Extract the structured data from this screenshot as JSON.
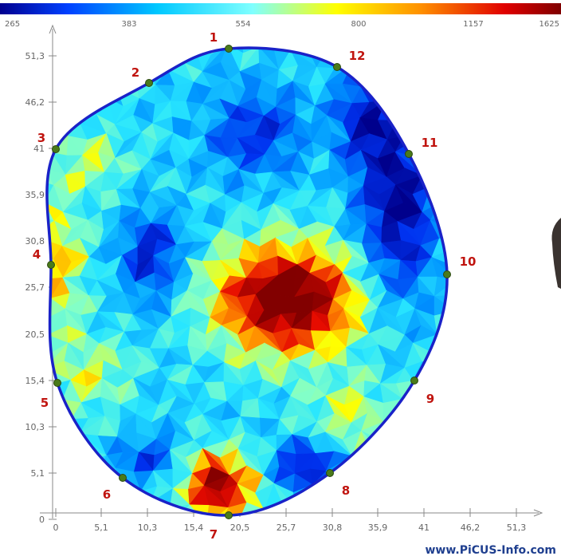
{
  "color_scale": {
    "labels": [
      "265",
      "383",
      "554",
      "800",
      "1157",
      "1625"
    ],
    "gradient": [
      "#00008f",
      "#0050ff",
      "#00c8ff",
      "#7fffff",
      "#ffff00",
      "#ff9000",
      "#e00000",
      "#7f0000"
    ]
  },
  "axes": {
    "y_ticks": [
      "51,3",
      "46,2",
      "41",
      "35,9",
      "30,8",
      "25,7",
      "20,5",
      "15,4",
      "10,3",
      "5,1",
      "0"
    ],
    "x_ticks": [
      "0",
      "5,1",
      "10,3",
      "15,4",
      "20,5",
      "25,7",
      "30,8",
      "35,9",
      "41",
      "46,2",
      "51,3"
    ]
  },
  "sensors": [
    {
      "label": "1"
    },
    {
      "label": "2"
    },
    {
      "label": "3"
    },
    {
      "label": "4"
    },
    {
      "label": "5"
    },
    {
      "label": "6"
    },
    {
      "label": "7"
    },
    {
      "label": "8"
    },
    {
      "label": "9"
    },
    {
      "label": "10"
    },
    {
      "label": "11"
    },
    {
      "label": "12"
    }
  ],
  "colors": {
    "outline": "#1a22c8",
    "sensor_dot": "#4a7a1a",
    "sensor_label": "#c0140f",
    "axis": "#888888"
  },
  "watermark": "www.PiCUS-Info.com"
}
